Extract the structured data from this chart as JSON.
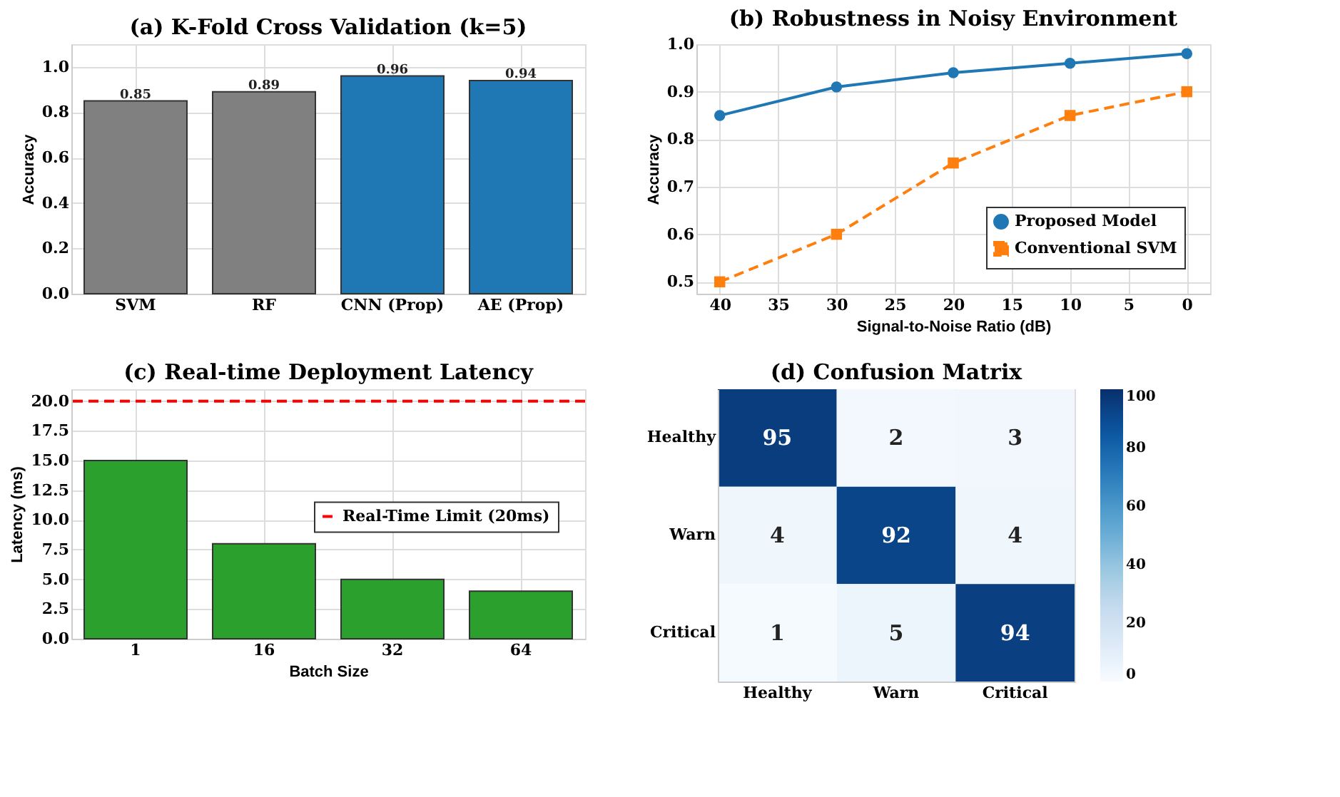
{
  "chart_data": [
    {
      "type": "bar",
      "title": "(a) K-Fold Cross Validation (k=5)",
      "ylabel": "Accuracy",
      "categories": [
        "SVM",
        "RF",
        "CNN (Prop)",
        "AE (Prop)"
      ],
      "values": [
        0.85,
        0.89,
        0.96,
        0.94
      ],
      "colors": [
        "#808080",
        "#808080",
        "#1f77b4",
        "#1f77b4"
      ],
      "data_labels": true,
      "ylim": [
        0,
        1.1
      ],
      "yticks": [
        {
          "value": 0,
          "label": "0.0"
        },
        0.2,
        0.4,
        0.6,
        0.8,
        {
          "value": 1,
          "label": "1.0"
        }
      ],
      "grid": true
    },
    {
      "type": "line",
      "title": "(b) Robustness in Noisy Environment",
      "xlabel": "Signal-to-Noise Ratio (dB)",
      "ylabel": "Accuracy",
      "x": [
        40,
        30,
        20,
        10,
        0
      ],
      "series": [
        {
          "name": "Proposed Model",
          "color": "#1f77b4",
          "values": [
            0.85,
            0.91,
            0.94,
            0.96,
            0.98
          ],
          "marker": "circle",
          "line_style": "solid"
        },
        {
          "name": "Conventional SVM",
          "color": "#ff7f0e",
          "values": [
            0.5,
            0.6,
            0.75,
            0.85,
            0.9
          ],
          "marker": "square",
          "line_style": "dashed"
        }
      ],
      "xlim": [
        42,
        -2
      ],
      "xticks": [
        40,
        35,
        30,
        25,
        20,
        15,
        10,
        5,
        0
      ],
      "ylim": [
        0.475,
        1.0
      ],
      "yticks": [
        0.5,
        0.6,
        0.7,
        0.8,
        0.9,
        {
          "value": 1,
          "label": "1.0"
        }
      ],
      "grid": true,
      "legend": "bottom right"
    },
    {
      "type": "bar",
      "title": "(c) Real-time Deployment Latency",
      "xlabel": "Batch Size",
      "ylabel": "Latency (ms)",
      "categories": [
        "1",
        "16",
        "32",
        "64"
      ],
      "values": [
        15,
        8,
        5,
        4
      ],
      "colors": [
        "#2ca02c",
        "#2ca02c",
        "#2ca02c",
        "#2ca02c"
      ],
      "ylim": [
        0,
        21
      ],
      "yticks": [
        {
          "value": 0,
          "label": "0.0"
        },
        2.5,
        {
          "value": 5,
          "label": "5.0"
        },
        7.5,
        {
          "value": 10,
          "label": "10.0"
        },
        12.5,
        {
          "value": 15,
          "label": "15.0"
        },
        17.5,
        {
          "value": 20,
          "label": "20.0"
        }
      ],
      "grid": true,
      "legend": "right",
      "ref_lines": [
        {
          "axis": "y",
          "value": 20,
          "label": "Real-Time Limit (20ms)",
          "color": "#ff0000",
          "line_style": "dashed"
        }
      ]
    },
    {
      "type": "heatmap",
      "title": "(d) Confusion Matrix",
      "categories": [
        "Healthy",
        "Warn",
        "Critical"
      ],
      "y_categories": [
        "Healthy",
        "Warn",
        "Critical"
      ],
      "cells": [
        [
          95,
          2,
          3
        ],
        [
          4,
          92,
          4
        ],
        [
          1,
          5,
          94
        ]
      ],
      "data_labels": true,
      "clim": [
        0,
        100
      ],
      "cticks": [
        0,
        20,
        40,
        60,
        80,
        100
      ]
    }
  ]
}
